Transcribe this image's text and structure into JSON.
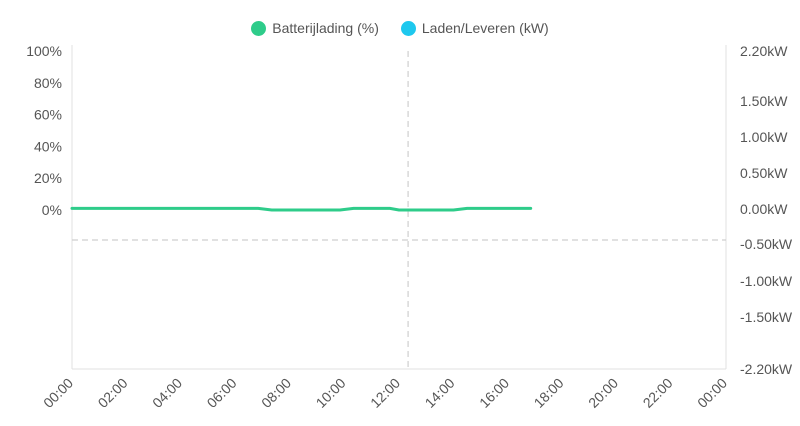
{
  "chart_data": {
    "type": "line",
    "title": "",
    "legend_position": "top",
    "x_ticks": [
      "00:00",
      "02:00",
      "04:00",
      "06:00",
      "08:00",
      "10:00",
      "12:00",
      "14:00",
      "16:00",
      "18:00",
      "20:00",
      "22:00",
      "00:00"
    ],
    "y_left_ticks": [
      "100%",
      "80%",
      "60%",
      "40%",
      "20%",
      "0%"
    ],
    "y_left_range": [
      0,
      100
    ],
    "y_right_ticks": [
      "2.20kW",
      "1.50kW",
      "1.00kW",
      "0.50kW",
      "0.00kW",
      "-0.50kW",
      "-1.00kW",
      "-1.50kW",
      "-2.20kW"
    ],
    "y_right_range": [
      -2.2,
      2.2
    ],
    "current_time": "12:20",
    "series": [
      {
        "name": "Batterijlading (%)",
        "color": "#2ecc8a",
        "axis": "left",
        "x": [
          "00:00",
          "06:50",
          "07:20",
          "09:50",
          "10:20",
          "11:40",
          "12:00",
          "14:00",
          "14:30",
          "16:50"
        ],
        "values": [
          1,
          1,
          0,
          0,
          1,
          1,
          0,
          0,
          1,
          1
        ]
      },
      {
        "name": "Laden/Leveren (kW)",
        "color": "#1ec8ee",
        "axis": "right",
        "x": [],
        "values": []
      }
    ]
  }
}
